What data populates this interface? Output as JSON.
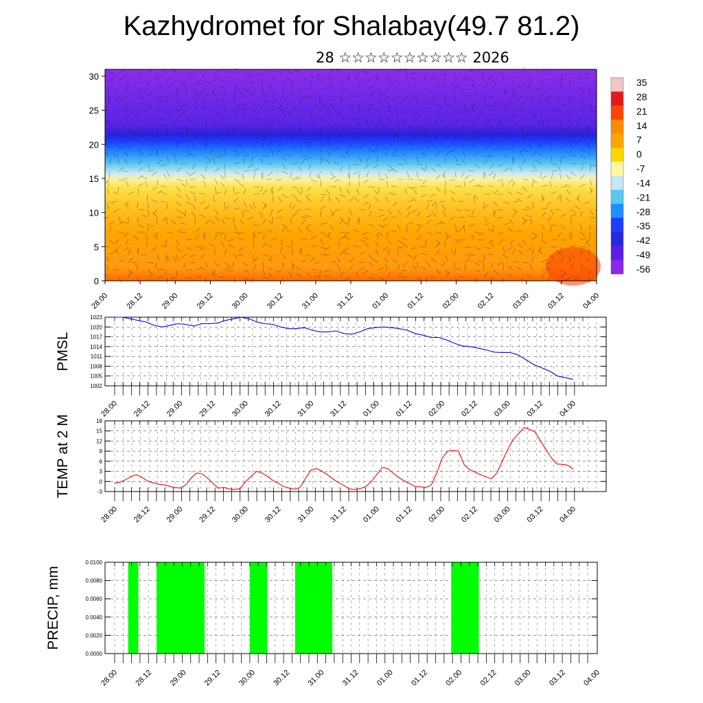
{
  "header": {
    "title": "Kazhydromet for Shalabay(49.7 81.2)",
    "subtitle": "28 ☆☆☆☆☆☆☆☆☆☆ 2026"
  },
  "colors": {
    "pmsl_line": "#0000ff",
    "temp_line": "#ff0000",
    "precip_bar": "#00ff00",
    "grid": "#555555"
  },
  "chart_data": [
    {
      "type": "heatmap",
      "name": "cross-section",
      "x_tick_labels": [
        "28.00",
        "28.12",
        "29.00",
        "29.12",
        "30.00",
        "30.12",
        "31.00",
        "31.12",
        "01.00",
        "01.12",
        "02.00",
        "02.12",
        "03.00",
        "03.12",
        "04.00"
      ],
      "ylim": [
        0,
        31
      ],
      "y_ticks": [
        0,
        5,
        10,
        15,
        20,
        25,
        30
      ],
      "colorbar_labels": [
        "35",
        "28",
        "21",
        "14",
        "7",
        "0",
        "-7",
        "-14",
        "-21",
        "-28",
        "-35",
        "-42",
        "-49",
        "-56"
      ],
      "colormap": [
        "#f2c6c6",
        "#e31a1c",
        "#ff4500",
        "#ff8c00",
        "#ffa500",
        "#ffd700",
        "#fff8a0",
        "#c6e8f5",
        "#5ac8f0",
        "#1e90ff",
        "#1e3cff",
        "#2828e0",
        "#5a1ee6",
        "#8c28e6"
      ]
    },
    {
      "type": "line",
      "name": "pmsl",
      "ylabel": "PMSL",
      "x_tick_labels": [
        "28.00",
        "28.12",
        "29.00",
        "29.12",
        "30.00",
        "30.12",
        "31.00",
        "31.12",
        "01.00",
        "01.12",
        "02.00",
        "02.12",
        "03.00",
        "03.12",
        "04.00"
      ],
      "ylim": [
        1002,
        1023
      ],
      "y_ticks": [
        "1002",
        "1005",
        "1008",
        "1011",
        "1014",
        "1017",
        "1020",
        "1023"
      ],
      "values": [
        1023,
        1023,
        1022.5,
        1022,
        1021.5,
        1020.5,
        1020,
        1020.5,
        1021,
        1020.8,
        1020.3,
        1021,
        1021,
        1021.2,
        1022,
        1022.5,
        1023,
        1022.5,
        1021.5,
        1021,
        1020.8,
        1020,
        1019.5,
        1019.5,
        1019.8,
        1019,
        1018.5,
        1018.5,
        1018.8,
        1018,
        1017.8,
        1018.5,
        1019.5,
        1019.8,
        1020,
        1019.8,
        1019.5,
        1019,
        1018,
        1017.5,
        1016.8,
        1016.8,
        1016,
        1015,
        1014.2,
        1014,
        1013.5,
        1013,
        1012.3,
        1012.2,
        1012.2,
        1011.5,
        1010,
        1008.5,
        1007.5,
        1006.5,
        1005,
        1004.5,
        1004
      ]
    },
    {
      "type": "line",
      "name": "temp",
      "ylabel": "TEMP at 2 M",
      "x_tick_labels": [
        "28.00",
        "28.12",
        "29.00",
        "29.12",
        "30.00",
        "30.12",
        "31.00",
        "31.12",
        "01.00",
        "01.12",
        "02.00",
        "02.12",
        "03.00",
        "03.12",
        "04.00"
      ],
      "ylim": [
        -3,
        18
      ],
      "y_ticks": [
        "-3",
        "0",
        "3",
        "6",
        "9",
        "12",
        "15",
        "18"
      ],
      "values": [
        -0.6,
        -0.2,
        0.5,
        1.5,
        2,
        1.2,
        0.2,
        -0.4,
        -0.8,
        -1,
        -1.4,
        -1.8,
        -2,
        -1,
        1,
        2.5,
        2.3,
        1,
        -0.6,
        -2,
        -1.8,
        -2.2,
        -2.4,
        -2.1,
        0,
        1.5,
        3,
        2.5,
        1.5,
        0.3,
        -0.6,
        -1.5,
        -2,
        -2.3,
        -1.7,
        1,
        3.5,
        3.8,
        3,
        2,
        0.7,
        -0.3,
        -1.2,
        -2.2,
        -2.4,
        -2.1,
        -1.5,
        0,
        2,
        4.2,
        3.8,
        2.5,
        1.2,
        0.2,
        -0.6,
        -1.5,
        -1.6,
        -1.8,
        -1,
        2.5,
        7,
        9,
        9.2,
        9,
        5,
        3.5,
        2.8,
        2,
        1.4,
        0.8,
        2.5,
        6,
        9.5,
        12.5,
        14.2,
        16,
        15.5,
        14.7,
        12,
        9.5,
        7,
        5.2,
        5.1,
        4.8,
        3.6
      ]
    },
    {
      "type": "bar",
      "name": "precip",
      "ylabel": "PRECIP, mm",
      "x_tick_labels": [
        "28.00",
        "28.12",
        "29.00",
        "29.12",
        "30.00",
        "30.12",
        "31.00",
        "31.12",
        "01.00",
        "01.12",
        "02.00",
        "02.12",
        "03.00",
        "03.12",
        "04.00"
      ],
      "ylim": [
        0,
        0.01
      ],
      "y_ticks": [
        "0.0000",
        "0.0020",
        "0.0040",
        "0.0060",
        "0.0080",
        "0.0100"
      ],
      "wet_intervals_days": [
        [
          0.2,
          0.35
        ],
        [
          0.62,
          1.33
        ],
        [
          2.0,
          2.26
        ],
        [
          2.67,
          3.22
        ],
        [
          4.98,
          5.39
        ]
      ],
      "interval_value": 0.01
    }
  ]
}
